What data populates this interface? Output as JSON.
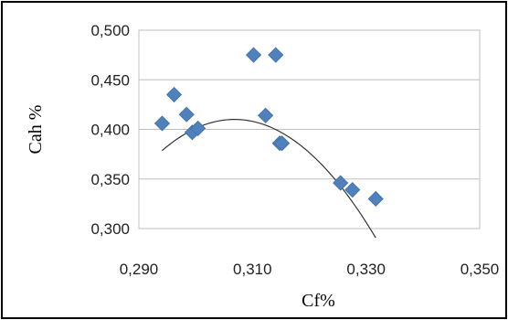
{
  "chart_data": {
    "type": "scatter",
    "xlabel": "Cf%",
    "ylabel": "Cah %",
    "xlim": [
      0.29,
      0.35
    ],
    "ylim": [
      0.3,
      0.5
    ],
    "x_ticks": [
      "0,290",
      "0,310",
      "0,330",
      "0,350"
    ],
    "x_tick_values": [
      0.29,
      0.31,
      0.33,
      0.35
    ],
    "y_ticks": [
      "0,300",
      "0,350",
      "0,400",
      "0,450",
      "0,500"
    ],
    "y_tick_values": [
      0.3,
      0.35,
      0.4,
      0.45,
      0.5
    ],
    "grid": "horizontal",
    "legend": "none",
    "series": [
      {
        "marker": "diamond",
        "color": "#4F81BD",
        "x": [
          0.2941,
          0.2962,
          0.2984,
          0.2994,
          0.3004,
          0.3102,
          0.3123,
          0.3141,
          0.3148,
          0.3152,
          0.3255,
          0.3276,
          0.3317
        ],
        "y": [
          0.406,
          0.435,
          0.415,
          0.397,
          0.401,
          0.475,
          0.414,
          0.475,
          0.386,
          0.386,
          0.346,
          0.339,
          0.33
        ]
      }
    ],
    "trendline": {
      "type": "polynomial-2",
      "color": "#333333",
      "x_range": [
        0.2941,
        0.3317
      ],
      "coefficients": [
        -193.1,
        118.5,
        -17.77
      ]
    }
  }
}
